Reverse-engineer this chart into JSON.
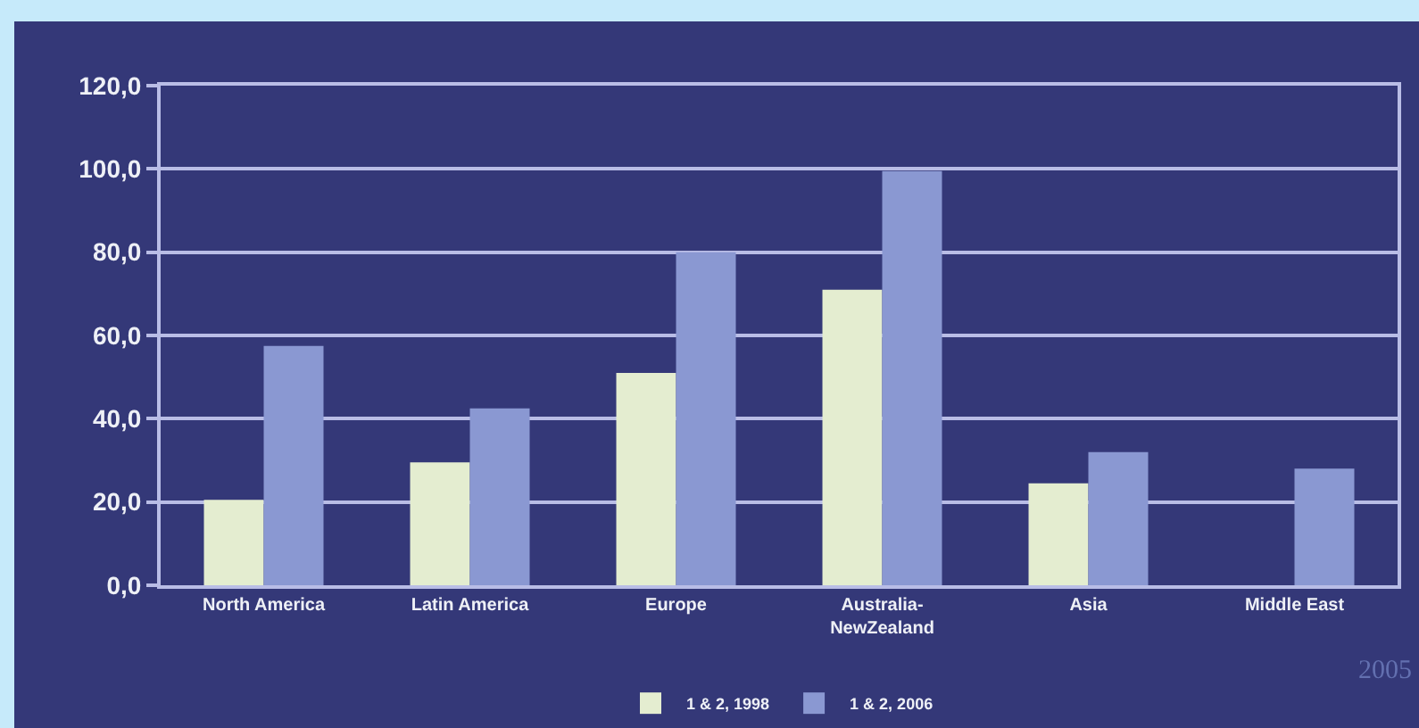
{
  "chart_data": {
    "type": "bar",
    "categories": [
      "North America",
      "Latin America",
      "Europe",
      "Australia-\nNewZealand",
      "Asia",
      "Middle East"
    ],
    "series": [
      {
        "name": "1 & 2, 1998",
        "color": "#e4edd0",
        "values": [
          20.5,
          29.5,
          51,
          71,
          24.5,
          null
        ]
      },
      {
        "name": "1 & 2, 2006",
        "color": "#8a98d2",
        "values": [
          57.5,
          42.5,
          80,
          99.5,
          32,
          28
        ]
      }
    ],
    "ylim": [
      0,
      120
    ],
    "yticks": [
      {
        "value": 0,
        "label": "0,0"
      },
      {
        "value": 20,
        "label": "20,0"
      },
      {
        "value": 40,
        "label": "40,0"
      },
      {
        "value": 60,
        "label": "60,0"
      },
      {
        "value": 80,
        "label": "80,0"
      },
      {
        "value": 100,
        "label": "100,0"
      },
      {
        "value": 120,
        "label": "120,0"
      }
    ],
    "grid": "y",
    "legend": "bottom",
    "annotations": [
      "2005"
    ]
  }
}
